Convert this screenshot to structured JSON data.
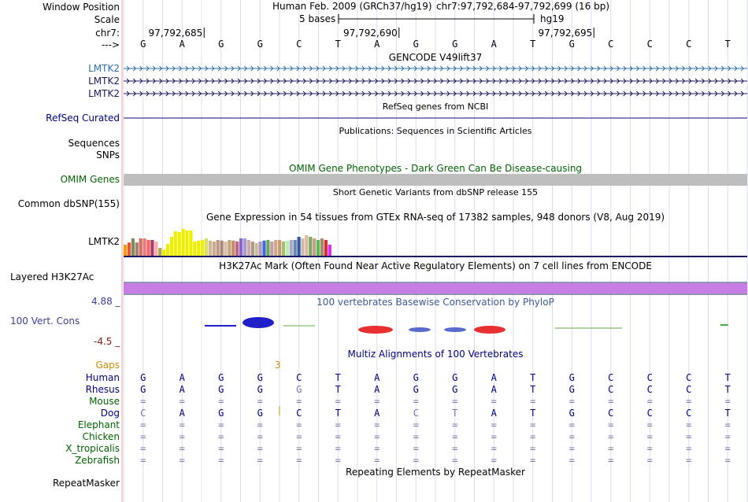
{
  "colors": {
    "divider": "#f0a0a0",
    "grid": "#dcdcf0",
    "gencode": "#1a1a60",
    "gencode_first": "#2a6fa8",
    "omim": "#bebebe",
    "h3k27ac": "#c87ce6",
    "refseq": "#0b0b70",
    "phylop": "#3c3c96",
    "gaps": "#d28a00",
    "species": "#006400",
    "maf_dim": "#7878aa",
    "h3k_dark": "#2a2a6a",
    "legend_red": "#8b1a1a"
  },
  "header": {
    "window_label": "Window Position",
    "scale_label": "Scale",
    "chrom_label": "chr7:",
    "strand_label": "--->",
    "assembly": "Human Feb. 2009 (GRCh37/hg19)",
    "position": "chr7:97,792,684-97,792,699 (16 bp)",
    "scale_text": "5 bases",
    "scale_db": "hg19",
    "ticks": [
      "97,792,685",
      "97,792,690",
      "97,792,695"
    ],
    "bases": [
      "G",
      "A",
      "G",
      "G",
      "C",
      "T",
      "A",
      "G",
      "G",
      "A",
      "T",
      "G",
      "C",
      "C",
      "C",
      "T"
    ]
  },
  "tracks": {
    "gencode": {
      "title": "GENCODE V49lift37",
      "labels": [
        "LMTK2",
        "LMTK2",
        "LMTK2"
      ]
    },
    "refseq": {
      "title": "RefSeq genes from NCBI",
      "label": "RefSeq Curated"
    },
    "pubs": {
      "title": "Publications: Sequences in Scientific Articles",
      "label": "Sequences"
    },
    "snps": {
      "label": "SNPs"
    },
    "omim": {
      "title": "OMIM Gene Phenotypes - Dark Green Can Be Disease-causing",
      "label": "OMIM Genes"
    },
    "dbsnp": {
      "title": "Short Genetic Variants from dbSNP release 155",
      "label": "Common dbSNP(155)"
    },
    "gtex": {
      "title": "Gene Expression in 54 tissues from GTEx RNA-seq of 17382 samples, 948 donors (V8, Aug 2019)",
      "label": "LMTK2",
      "values": [
        0.35,
        0.42,
        0.55,
        0.42,
        0.55,
        0.55,
        0.5,
        0.5,
        0.45,
        0.25,
        0.2,
        0.38,
        0.6,
        0.78,
        0.75,
        0.85,
        0.8,
        0.8,
        0.45,
        0.48,
        0.5,
        0.55,
        0.48,
        0.45,
        0.5,
        0.48,
        0.45,
        0.5,
        0.48,
        0.45,
        0.55,
        0.55,
        0.5,
        0.45,
        0.4,
        0.45,
        0.48,
        0.5,
        0.45,
        0.5,
        0.5,
        0.45,
        0.48,
        0.5,
        0.5,
        0.6,
        0.55,
        0.65,
        0.6,
        0.55,
        0.5,
        0.55,
        0.5,
        0.35
      ],
      "bar_colors": [
        "#ff9900",
        "#e5553a",
        "#7f8c5a",
        "#a08070",
        "#d27060",
        "#e97a7f",
        "#ff6060",
        "#a04070",
        "#ffaaaa",
        "#aaaa55",
        "#eeee00",
        "#eeee00",
        "#eeee00",
        "#eeee00",
        "#eeee00",
        "#eeee00",
        "#eeee00",
        "#eeee00",
        "#eeee00",
        "#eeee00",
        "#eeee00",
        "#dddd66",
        "#ccbb99",
        "#ccaa88",
        "#bb9988",
        "#aa8877",
        "#ddbbaa",
        "#bbaa77",
        "#cc8866",
        "#bb6688",
        "#8866cc",
        "#aa99cc",
        "#ccaaaa",
        "#aa9988",
        "#ccbb99",
        "#aa99bb",
        "#4466dd",
        "#66aa55",
        "#cc99aa",
        "#ccaa88",
        "#cc9977",
        "#aabb77",
        "#bbeeaa",
        "#aaaacc",
        "#6688aa",
        "#3355aa",
        "#ccbbaa",
        "#ddbb99",
        "#77aa66",
        "#cc9988",
        "#55bb55",
        "#aa8866",
        "#cc3333",
        "#ee22ee"
      ]
    },
    "h3k27ac": {
      "title": "H3K27Ac Mark (Often Found Near Active Regulatory Elements) on 7 cell lines from ENCODE",
      "label": "Layered H3K27Ac"
    },
    "cons": {
      "title": "100 vertebrates Basewise Conservation by PhyloP",
      "label": "100 Vert. Cons",
      "max": "4.88 _",
      "min": "-4.5 _"
    },
    "multiz": {
      "title": "Multiz Alignments of 100 Vertebrates",
      "gaps_label": "Gaps",
      "gaps_value": "3",
      "species": [
        {
          "name": "Human",
          "seq": [
            "G",
            "A",
            "G",
            "G",
            "C",
            "T",
            "A",
            "G",
            "G",
            "A",
            "T",
            "G",
            "C",
            "C",
            "C",
            "T"
          ]
        },
        {
          "name": "Rhesus",
          "seq": [
            "G",
            "A",
            "G",
            "G",
            "G",
            "T",
            "A",
            "G",
            "G",
            "A",
            "T",
            "G",
            "C",
            "C",
            "C",
            "T"
          ]
        },
        {
          "name": "Mouse",
          "seq": [
            "=",
            "=",
            "=",
            "=",
            "=",
            "=",
            "=",
            "=",
            "=",
            "=",
            "=",
            "=",
            "=",
            "=",
            "=",
            "="
          ]
        },
        {
          "name": "Dog",
          "seq": [
            "C",
            "A",
            "G",
            "G",
            "C",
            "T",
            "A",
            "C",
            "T",
            "A",
            "T",
            "G",
            "C",
            "C",
            "C",
            "T"
          ]
        },
        {
          "name": "Elephant",
          "seq": [
            "=",
            "=",
            "=",
            "=",
            "=",
            "=",
            "=",
            "=",
            "=",
            "=",
            "=",
            "=",
            "=",
            "=",
            "=",
            "="
          ]
        },
        {
          "name": "Chicken",
          "seq": [
            "=",
            "=",
            "=",
            "=",
            "=",
            "=",
            "=",
            "=",
            "=",
            "=",
            "=",
            "=",
            "=",
            "=",
            "=",
            "="
          ]
        },
        {
          "name": "X_tropicalis",
          "seq": [
            "=",
            "=",
            "=",
            "=",
            "=",
            "=",
            "=",
            "=",
            "=",
            "=",
            "=",
            "=",
            "=",
            "=",
            "=",
            "="
          ]
        },
        {
          "name": "Zebrafish",
          "seq": [
            "=",
            "=",
            "=",
            "=",
            "=",
            "=",
            "=",
            "=",
            "=",
            "=",
            "=",
            "=",
            "=",
            "=",
            "=",
            "="
          ]
        }
      ]
    },
    "rmsk": {
      "title": "Repeating Elements by RepeatMasker",
      "label": "RepeatMasker"
    }
  }
}
